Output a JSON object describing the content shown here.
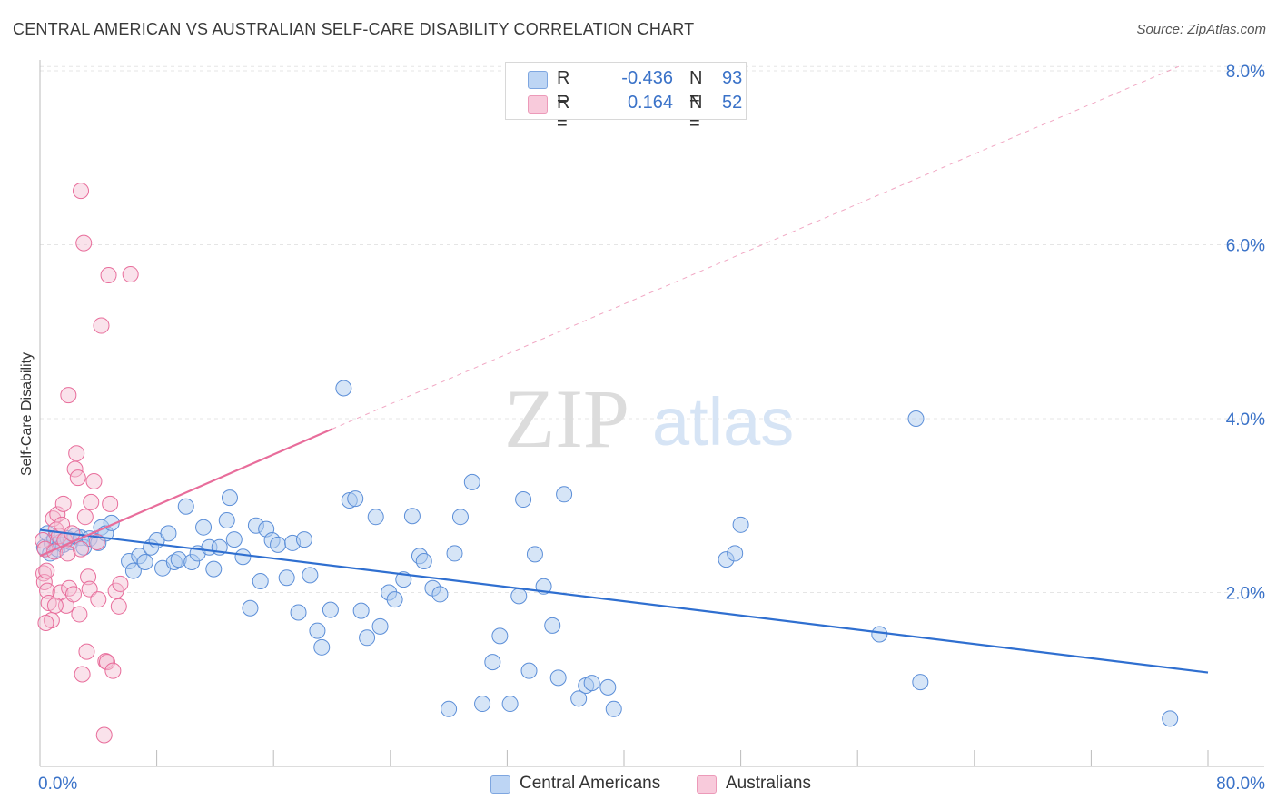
{
  "title": "CENTRAL AMERICAN VS AUSTRALIAN SELF-CARE DISABILITY CORRELATION CHART",
  "source": "Source: ZipAtlas.com",
  "watermark": {
    "zip": "ZIP",
    "atlas": "atlas"
  },
  "colors": {
    "blue": "#5b8ed8",
    "blue_fill": "#aecbf0",
    "blue_line": "#2f6fd0",
    "pink": "#e86d9b",
    "pink_fill": "#f5bfd2",
    "axis_text": "#3a72c8",
    "grid": "#e5e5e5"
  },
  "legend": [
    {
      "r_label": "R =",
      "r_value": "-0.436",
      "n_label": "N =",
      "n_value": "93"
    },
    {
      "r_label": "R =",
      "r_value": "0.164",
      "n_label": "N =",
      "n_value": "52"
    }
  ],
  "chart_data": {
    "type": "scatter",
    "title": "CENTRAL AMERICAN VS AUSTRALIAN SELF-CARE DISABILITY CORRELATION CHART",
    "xlabel": "",
    "ylabel": "Self-Care Disability",
    "xlim": [
      0,
      80
    ],
    "ylim": [
      0,
      8.0
    ],
    "x_tick_labels": [
      "0.0%",
      "80.0%"
    ],
    "y_ticks": [
      2.0,
      4.0,
      6.0,
      8.0
    ],
    "y_tick_labels": [
      "2.0%",
      "4.0%",
      "6.0%",
      "8.0%"
    ],
    "grid": true,
    "legend_position": "top-center",
    "series": [
      {
        "name": "Central Americans",
        "color": "#5b8ed8",
        "trend": {
          "x": [
            0,
            80
          ],
          "y": [
            2.72,
            1.08
          ]
        },
        "points": [
          [
            0.3,
            2.52
          ],
          [
            0.5,
            2.68
          ],
          [
            0.7,
            2.45
          ],
          [
            0.8,
            2.57
          ],
          [
            1.0,
            2.62
          ],
          [
            1.2,
            2.5
          ],
          [
            1.4,
            2.58
          ],
          [
            1.6,
            2.55
          ],
          [
            1.9,
            2.62
          ],
          [
            2.1,
            2.58
          ],
          [
            2.4,
            2.65
          ],
          [
            2.8,
            2.63
          ],
          [
            3.0,
            2.52
          ],
          [
            3.4,
            2.62
          ],
          [
            4.0,
            2.57
          ],
          [
            4.2,
            2.75
          ],
          [
            4.5,
            2.68
          ],
          [
            4.9,
            2.8
          ],
          [
            6.1,
            2.36
          ],
          [
            6.4,
            2.25
          ],
          [
            6.8,
            2.42
          ],
          [
            7.2,
            2.35
          ],
          [
            7.6,
            2.52
          ],
          [
            8.0,
            2.6
          ],
          [
            8.4,
            2.28
          ],
          [
            8.8,
            2.68
          ],
          [
            9.2,
            2.35
          ],
          [
            9.5,
            2.38
          ],
          [
            10.0,
            2.99
          ],
          [
            10.4,
            2.35
          ],
          [
            10.8,
            2.45
          ],
          [
            11.2,
            2.75
          ],
          [
            11.6,
            2.52
          ],
          [
            11.9,
            2.27
          ],
          [
            12.3,
            2.52
          ],
          [
            12.8,
            2.83
          ],
          [
            13.0,
            3.09
          ],
          [
            13.3,
            2.61
          ],
          [
            13.9,
            2.41
          ],
          [
            14.4,
            1.82
          ],
          [
            14.8,
            2.77
          ],
          [
            15.1,
            2.13
          ],
          [
            15.5,
            2.73
          ],
          [
            15.9,
            2.6
          ],
          [
            16.3,
            2.55
          ],
          [
            16.9,
            2.17
          ],
          [
            17.3,
            2.57
          ],
          [
            17.7,
            1.77
          ],
          [
            18.1,
            2.61
          ],
          [
            18.5,
            2.2
          ],
          [
            19.0,
            1.56
          ],
          [
            19.3,
            1.37
          ],
          [
            19.9,
            1.8
          ],
          [
            20.8,
            4.35
          ],
          [
            21.2,
            3.06
          ],
          [
            21.6,
            3.08
          ],
          [
            22.0,
            1.79
          ],
          [
            22.4,
            1.48
          ],
          [
            23.0,
            2.87
          ],
          [
            23.3,
            1.61
          ],
          [
            23.9,
            2.0
          ],
          [
            24.3,
            1.92
          ],
          [
            24.9,
            2.15
          ],
          [
            25.5,
            2.88
          ],
          [
            26.0,
            2.42
          ],
          [
            26.3,
            2.36
          ],
          [
            26.9,
            2.05
          ],
          [
            27.4,
            1.98
          ],
          [
            28.0,
            0.66
          ],
          [
            28.4,
            2.45
          ],
          [
            28.8,
            2.87
          ],
          [
            29.6,
            3.27
          ],
          [
            30.3,
            0.72
          ],
          [
            31.0,
            1.2
          ],
          [
            31.5,
            1.5
          ],
          [
            32.2,
            0.72
          ],
          [
            32.8,
            1.96
          ],
          [
            33.1,
            3.07
          ],
          [
            33.5,
            1.1
          ],
          [
            33.9,
            2.44
          ],
          [
            34.5,
            2.07
          ],
          [
            35.1,
            1.62
          ],
          [
            35.5,
            1.02
          ],
          [
            35.9,
            3.13
          ],
          [
            36.9,
            0.78
          ],
          [
            37.4,
            0.93
          ],
          [
            37.8,
            0.96
          ],
          [
            38.9,
            0.91
          ],
          [
            39.3,
            0.66
          ],
          [
            47.0,
            2.38
          ],
          [
            47.6,
            2.45
          ],
          [
            48.0,
            2.78
          ],
          [
            57.5,
            1.52
          ],
          [
            60.0,
            4.0
          ],
          [
            60.3,
            0.97
          ],
          [
            77.4,
            0.55
          ]
        ]
      },
      {
        "name": "Australians",
        "color": "#e86d9b",
        "trend": {
          "x": [
            0,
            20
          ],
          "y": [
            2.42,
            3.88
          ]
        },
        "trend_extension": {
          "x": [
            20,
            78
          ],
          "y": [
            3.88,
            8.05
          ]
        },
        "points": [
          [
            0.2,
            2.6
          ],
          [
            0.25,
            2.22
          ],
          [
            0.3,
            2.12
          ],
          [
            0.35,
            2.5
          ],
          [
            0.45,
            2.25
          ],
          [
            0.5,
            2.02
          ],
          [
            0.6,
            1.88
          ],
          [
            0.8,
            1.68
          ],
          [
            0.9,
            2.85
          ],
          [
            1.0,
            2.47
          ],
          [
            1.1,
            2.72
          ],
          [
            1.2,
            2.9
          ],
          [
            1.3,
            2.65
          ],
          [
            1.4,
            2.0
          ],
          [
            1.5,
            2.78
          ],
          [
            1.6,
            3.02
          ],
          [
            1.7,
            2.6
          ],
          [
            1.8,
            1.85
          ],
          [
            1.9,
            2.45
          ],
          [
            2.0,
            2.05
          ],
          [
            2.2,
            2.68
          ],
          [
            2.3,
            1.98
          ],
          [
            2.4,
            3.42
          ],
          [
            2.5,
            3.6
          ],
          [
            2.6,
            3.32
          ],
          [
            2.7,
            1.75
          ],
          [
            2.8,
            2.5
          ],
          [
            2.9,
            1.06
          ],
          [
            3.0,
            6.02
          ],
          [
            3.1,
            2.87
          ],
          [
            3.2,
            1.32
          ],
          [
            3.3,
            2.18
          ],
          [
            3.4,
            2.04
          ],
          [
            3.5,
            3.04
          ],
          [
            3.7,
            3.28
          ],
          [
            3.9,
            2.58
          ],
          [
            4.0,
            1.92
          ],
          [
            4.2,
            5.07
          ],
          [
            4.4,
            0.36
          ],
          [
            4.5,
            1.21
          ],
          [
            4.6,
            1.2
          ],
          [
            4.7,
            5.65
          ],
          [
            4.8,
            3.02
          ],
          [
            5.0,
            1.1
          ],
          [
            5.2,
            2.02
          ],
          [
            5.4,
            1.84
          ],
          [
            5.5,
            2.1
          ],
          [
            6.2,
            5.66
          ],
          [
            1.95,
            4.27
          ],
          [
            2.8,
            6.62
          ],
          [
            1.05,
            1.85
          ],
          [
            0.4,
            1.65
          ]
        ]
      }
    ]
  },
  "bottom_legend": [
    "Central Americans",
    "Australians"
  ]
}
